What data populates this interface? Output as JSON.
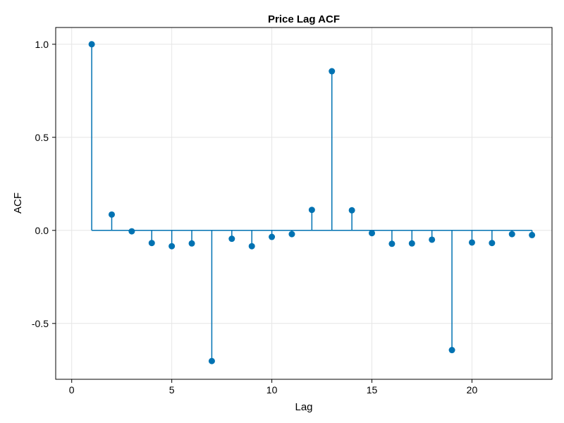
{
  "chart_data": {
    "type": "stem",
    "title": "Price Lag ACF",
    "xlabel": "Lag",
    "ylabel": "ACF",
    "xlim": [
      -0.8,
      24
    ],
    "ylim": [
      -0.8,
      1.09
    ],
    "xticks": [
      0,
      5,
      10,
      15,
      20
    ],
    "yticks": [
      -0.5,
      0.0,
      0.5,
      1.0
    ],
    "xtick_labels": [
      "0",
      "5",
      "10",
      "15",
      "20"
    ],
    "ytick_labels": [
      "-0.5",
      "0.0",
      "0.5",
      "1.0"
    ],
    "grid": true,
    "baseline": 0,
    "color": "#0072b2",
    "series": [
      {
        "x": [
          1,
          2,
          3,
          4,
          5,
          6,
          7,
          8,
          9,
          10,
          11,
          12,
          13,
          14,
          15,
          16,
          17,
          18,
          19,
          20,
          21,
          22,
          23
        ],
        "values": [
          1.0,
          0.085,
          -0.005,
          -0.068,
          -0.085,
          -0.07,
          -0.702,
          -0.045,
          -0.085,
          -0.035,
          -0.02,
          0.11,
          0.855,
          0.108,
          -0.015,
          -0.072,
          -0.07,
          -0.05,
          -0.643,
          -0.065,
          -0.068,
          -0.02,
          -0.025
        ]
      }
    ]
  }
}
